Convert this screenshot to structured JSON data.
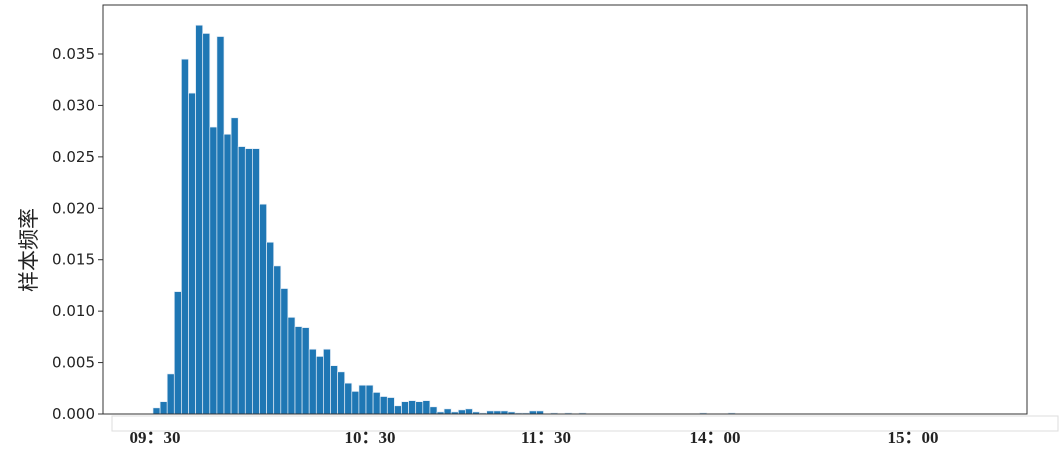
{
  "chart_data": {
    "type": "bar",
    "title": "",
    "xlabel": "",
    "ylabel": "样本频率",
    "ylim": [
      0,
      0.0395
    ],
    "yticks": [
      "0.000",
      "0.005",
      "0.010",
      "0.015",
      "0.020",
      "0.025",
      "0.030",
      "0.035"
    ],
    "xtick_labels": [
      "09：30",
      "10：30",
      "11：30",
      "14：00",
      "15：00"
    ],
    "grid": false,
    "color": "#1f77b4",
    "values": [
      0.0006,
      0.0012,
      0.0039,
      0.0119,
      0.0345,
      0.0312,
      0.0378,
      0.037,
      0.0279,
      0.0367,
      0.0272,
      0.0288,
      0.026,
      0.0258,
      0.0258,
      0.0204,
      0.0167,
      0.0144,
      0.0122,
      0.0094,
      0.0085,
      0.0084,
      0.0063,
      0.0056,
      0.0063,
      0.0047,
      0.0041,
      0.003,
      0.0022,
      0.0028,
      0.0028,
      0.0021,
      0.0017,
      0.0016,
      0.0008,
      0.0012,
      0.0013,
      0.0012,
      0.0013,
      0.0007,
      0.0002,
      0.0005,
      0.0002,
      0.0004,
      0.0005,
      0.0002,
      0.0001,
      0.0003,
      0.0003,
      0.0003,
      0.0002,
      0.0001,
      0.0001,
      0.0003,
      0.0003,
      0,
      0.0001,
      0,
      0.0001,
      0,
      0.0001,
      0,
      0,
      0,
      0,
      0,
      0,
      0,
      0,
      0,
      0,
      0,
      0,
      0,
      0,
      0,
      0,
      0.0001,
      0,
      0,
      0,
      0.0001
    ]
  }
}
